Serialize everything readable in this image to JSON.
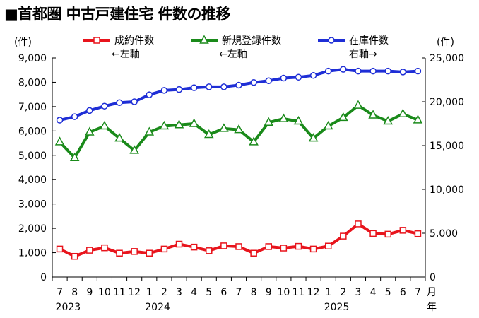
{
  "title": "■首都圏 中古戸建住宅 件数の推移",
  "chart_data": {
    "type": "line",
    "title": "■首都圏 中古戸建住宅 件数の推移",
    "x_month_labels": [
      "7",
      "8",
      "9",
      "10",
      "11",
      "12",
      "1",
      "2",
      "3",
      "4",
      "5",
      "6",
      "7",
      "8",
      "9",
      "10",
      "11",
      "12",
      "1",
      "2",
      "3",
      "4",
      "5",
      "6",
      "7"
    ],
    "x_year_labels": [
      {
        "label": "2023",
        "at": 0
      },
      {
        "label": "2024",
        "at": 6
      },
      {
        "label": "2025",
        "at": 18
      }
    ],
    "x_unit_month": "月",
    "x_unit_year": "年",
    "left_axis": {
      "unit": "(件)",
      "min": 0,
      "max": 9000,
      "ticks": [
        "0",
        "1,000",
        "2,000",
        "3,000",
        "4,000",
        "5,000",
        "6,000",
        "7,000",
        "8,000",
        "9,000"
      ]
    },
    "right_axis": {
      "unit": "(件)",
      "min": 0,
      "max": 25000,
      "ticks": [
        "0",
        "5,000",
        "10,000",
        "15,000",
        "20,000",
        "25,000"
      ]
    },
    "grid": false,
    "legend_position": "top",
    "series": [
      {
        "name": "成約件数",
        "axis": "left",
        "axis_note": "←左軸",
        "color": "#e8141c",
        "marker": "square",
        "values": [
          1150,
          850,
          1100,
          1200,
          980,
          1050,
          980,
          1150,
          1350,
          1230,
          1080,
          1280,
          1250,
          980,
          1250,
          1190,
          1260,
          1150,
          1270,
          1680,
          2180,
          1790,
          1760,
          1920,
          1780
        ]
      },
      {
        "name": "新規登録件数",
        "axis": "left",
        "axis_note": "←左軸",
        "color": "#1a8a1a",
        "marker": "triangle",
        "values": [
          5550,
          4900,
          5950,
          6200,
          5700,
          5200,
          5950,
          6200,
          6250,
          6300,
          5850,
          6100,
          6050,
          5550,
          6350,
          6500,
          6400,
          5700,
          6200,
          6550,
          7050,
          6650,
          6400,
          6700,
          6450
        ]
      },
      {
        "name": "在庫件数",
        "axis": "right",
        "axis_note": "右軸→",
        "color": "#1e2ed6",
        "marker": "circle",
        "values": [
          17900,
          18300,
          19000,
          19500,
          19900,
          20000,
          20800,
          21300,
          21400,
          21600,
          21700,
          21700,
          21900,
          22200,
          22400,
          22700,
          22800,
          23000,
          23500,
          23700,
          23500,
          23500,
          23500,
          23400,
          23500
        ]
      }
    ]
  }
}
